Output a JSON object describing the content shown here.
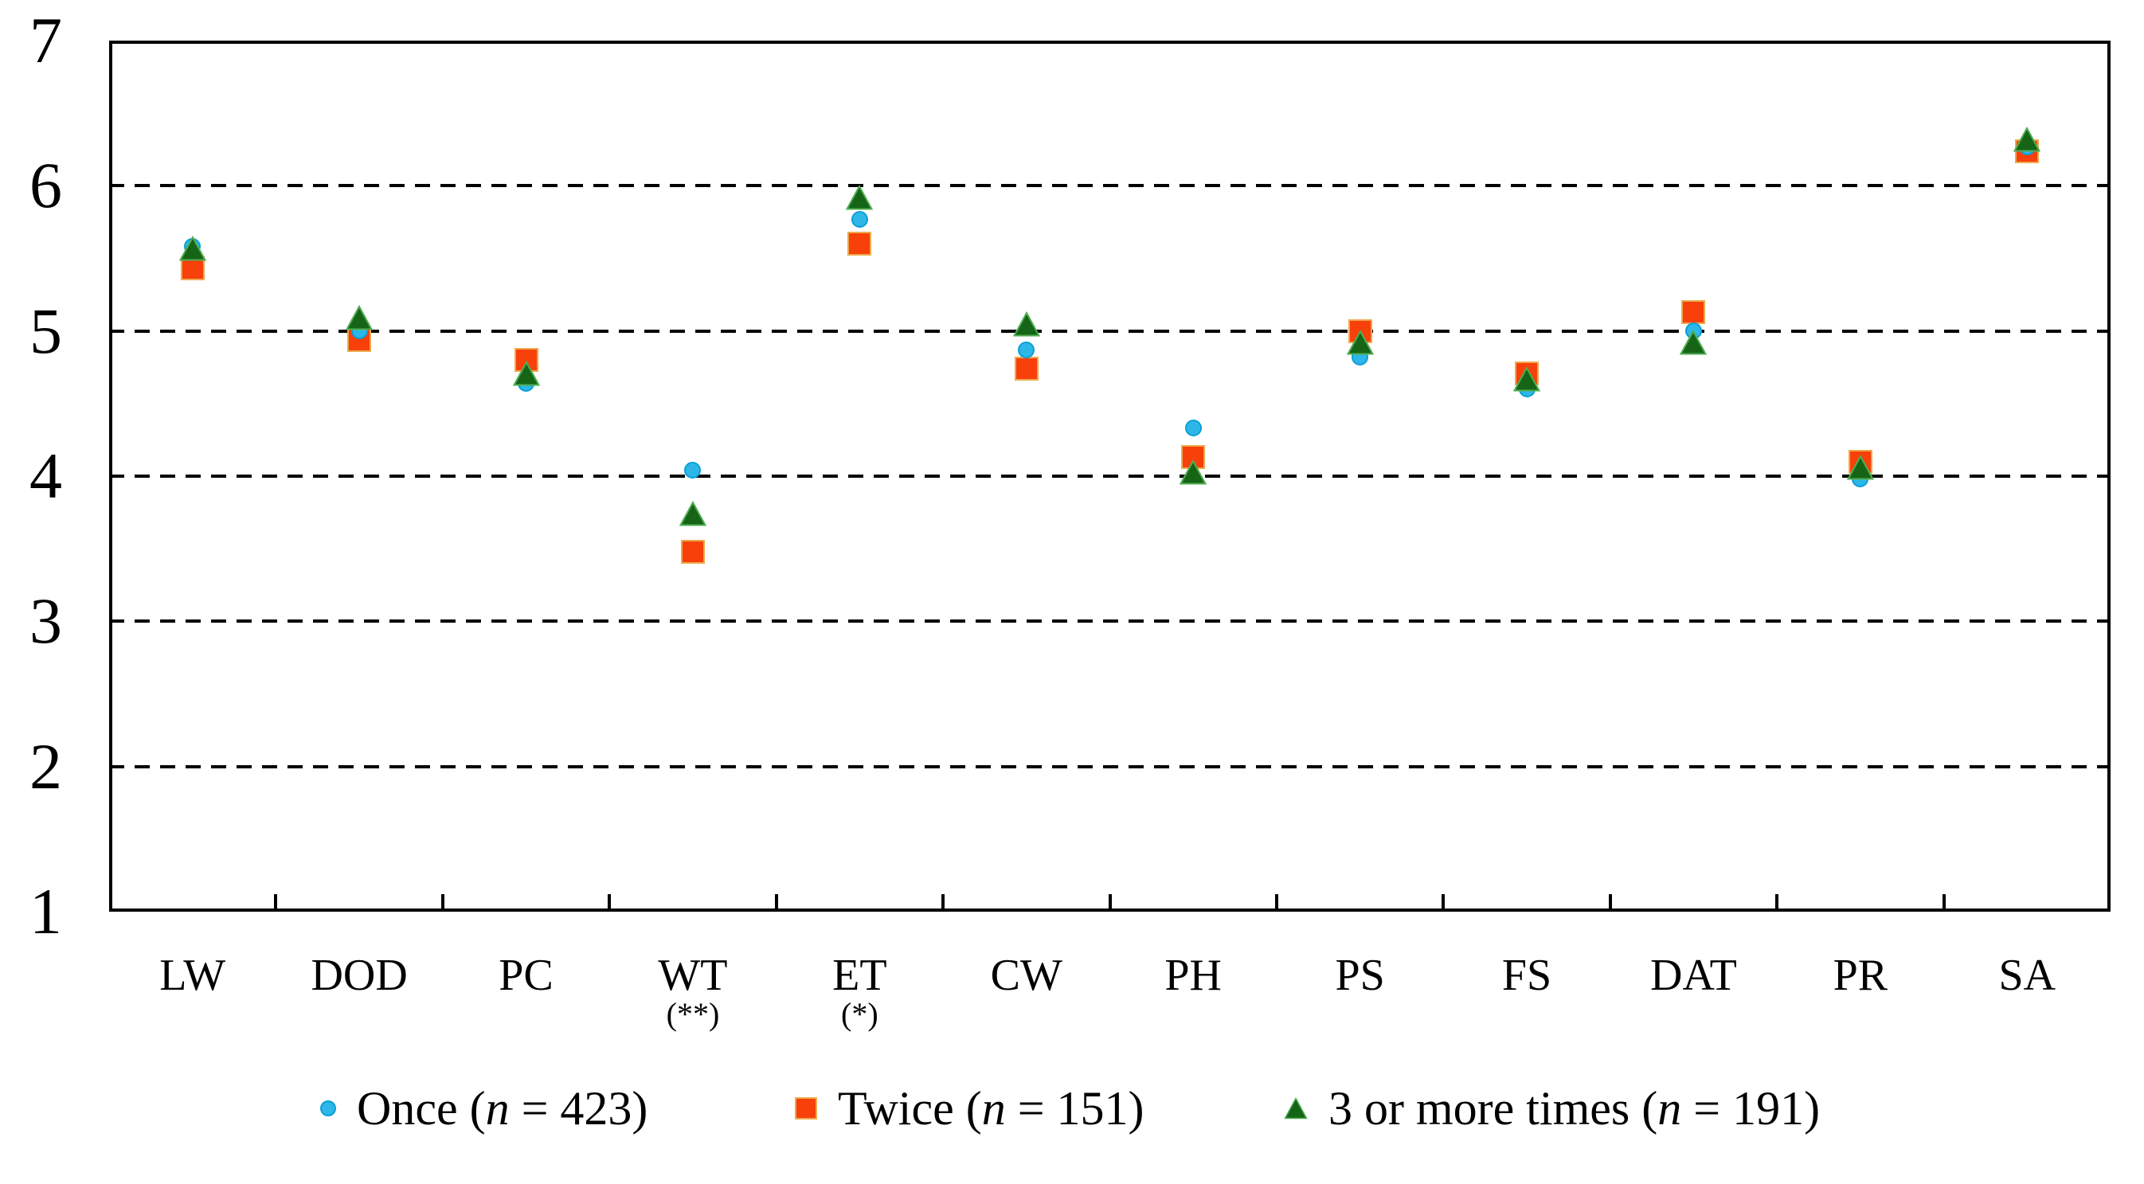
{
  "figure": {
    "background": "#ffffff",
    "axis_color": "#000000",
    "gridline_color": "#000000"
  },
  "chart_data": {
    "type": "scatter",
    "title": "",
    "xlabel": "",
    "ylabel": "",
    "ylim": [
      1,
      7
    ],
    "yticks": [
      "7",
      "6",
      "5",
      "4",
      "3",
      "2",
      "1"
    ],
    "ytick_values": [
      7,
      6,
      5,
      4,
      3,
      2,
      1
    ],
    "gridline_values": [
      2,
      3,
      4,
      5,
      6
    ],
    "gridline_style": "dashed",
    "legend_position": "bottom",
    "categories": [
      "LW",
      "DOD",
      "PC",
      "WT",
      "ET",
      "CW",
      "PH",
      "PS",
      "FS",
      "DAT",
      "PR",
      "SA"
    ],
    "category_notes": [
      "",
      "",
      "",
      "(**)",
      "(*)",
      "",
      "",
      "",
      "",
      "",
      "",
      ""
    ],
    "series": [
      {
        "name": "Once (n = 423)",
        "marker": "circle",
        "color": "#2db7e8",
        "border_color": "#0b9fd6",
        "values": [
          5.58,
          5.0,
          4.64,
          4.04,
          5.77,
          4.87,
          4.33,
          4.82,
          4.6,
          5.0,
          3.98,
          6.27
        ]
      },
      {
        "name": "Twice (n = 151)",
        "marker": "square",
        "color": "#f8400a",
        "border_color": "#edaa4e",
        "values": [
          5.43,
          4.94,
          4.8,
          3.48,
          5.6,
          4.74,
          4.13,
          5.0,
          4.71,
          5.13,
          4.1,
          6.24
        ]
      },
      {
        "name": "3 or more times (n = 191)",
        "marker": "triangle",
        "color": "#166517",
        "border_color": "#50ad52",
        "values": [
          5.57,
          5.09,
          4.71,
          3.74,
          5.92,
          5.05,
          4.03,
          4.92,
          4.67,
          4.92,
          4.06,
          6.32
        ]
      }
    ]
  }
}
